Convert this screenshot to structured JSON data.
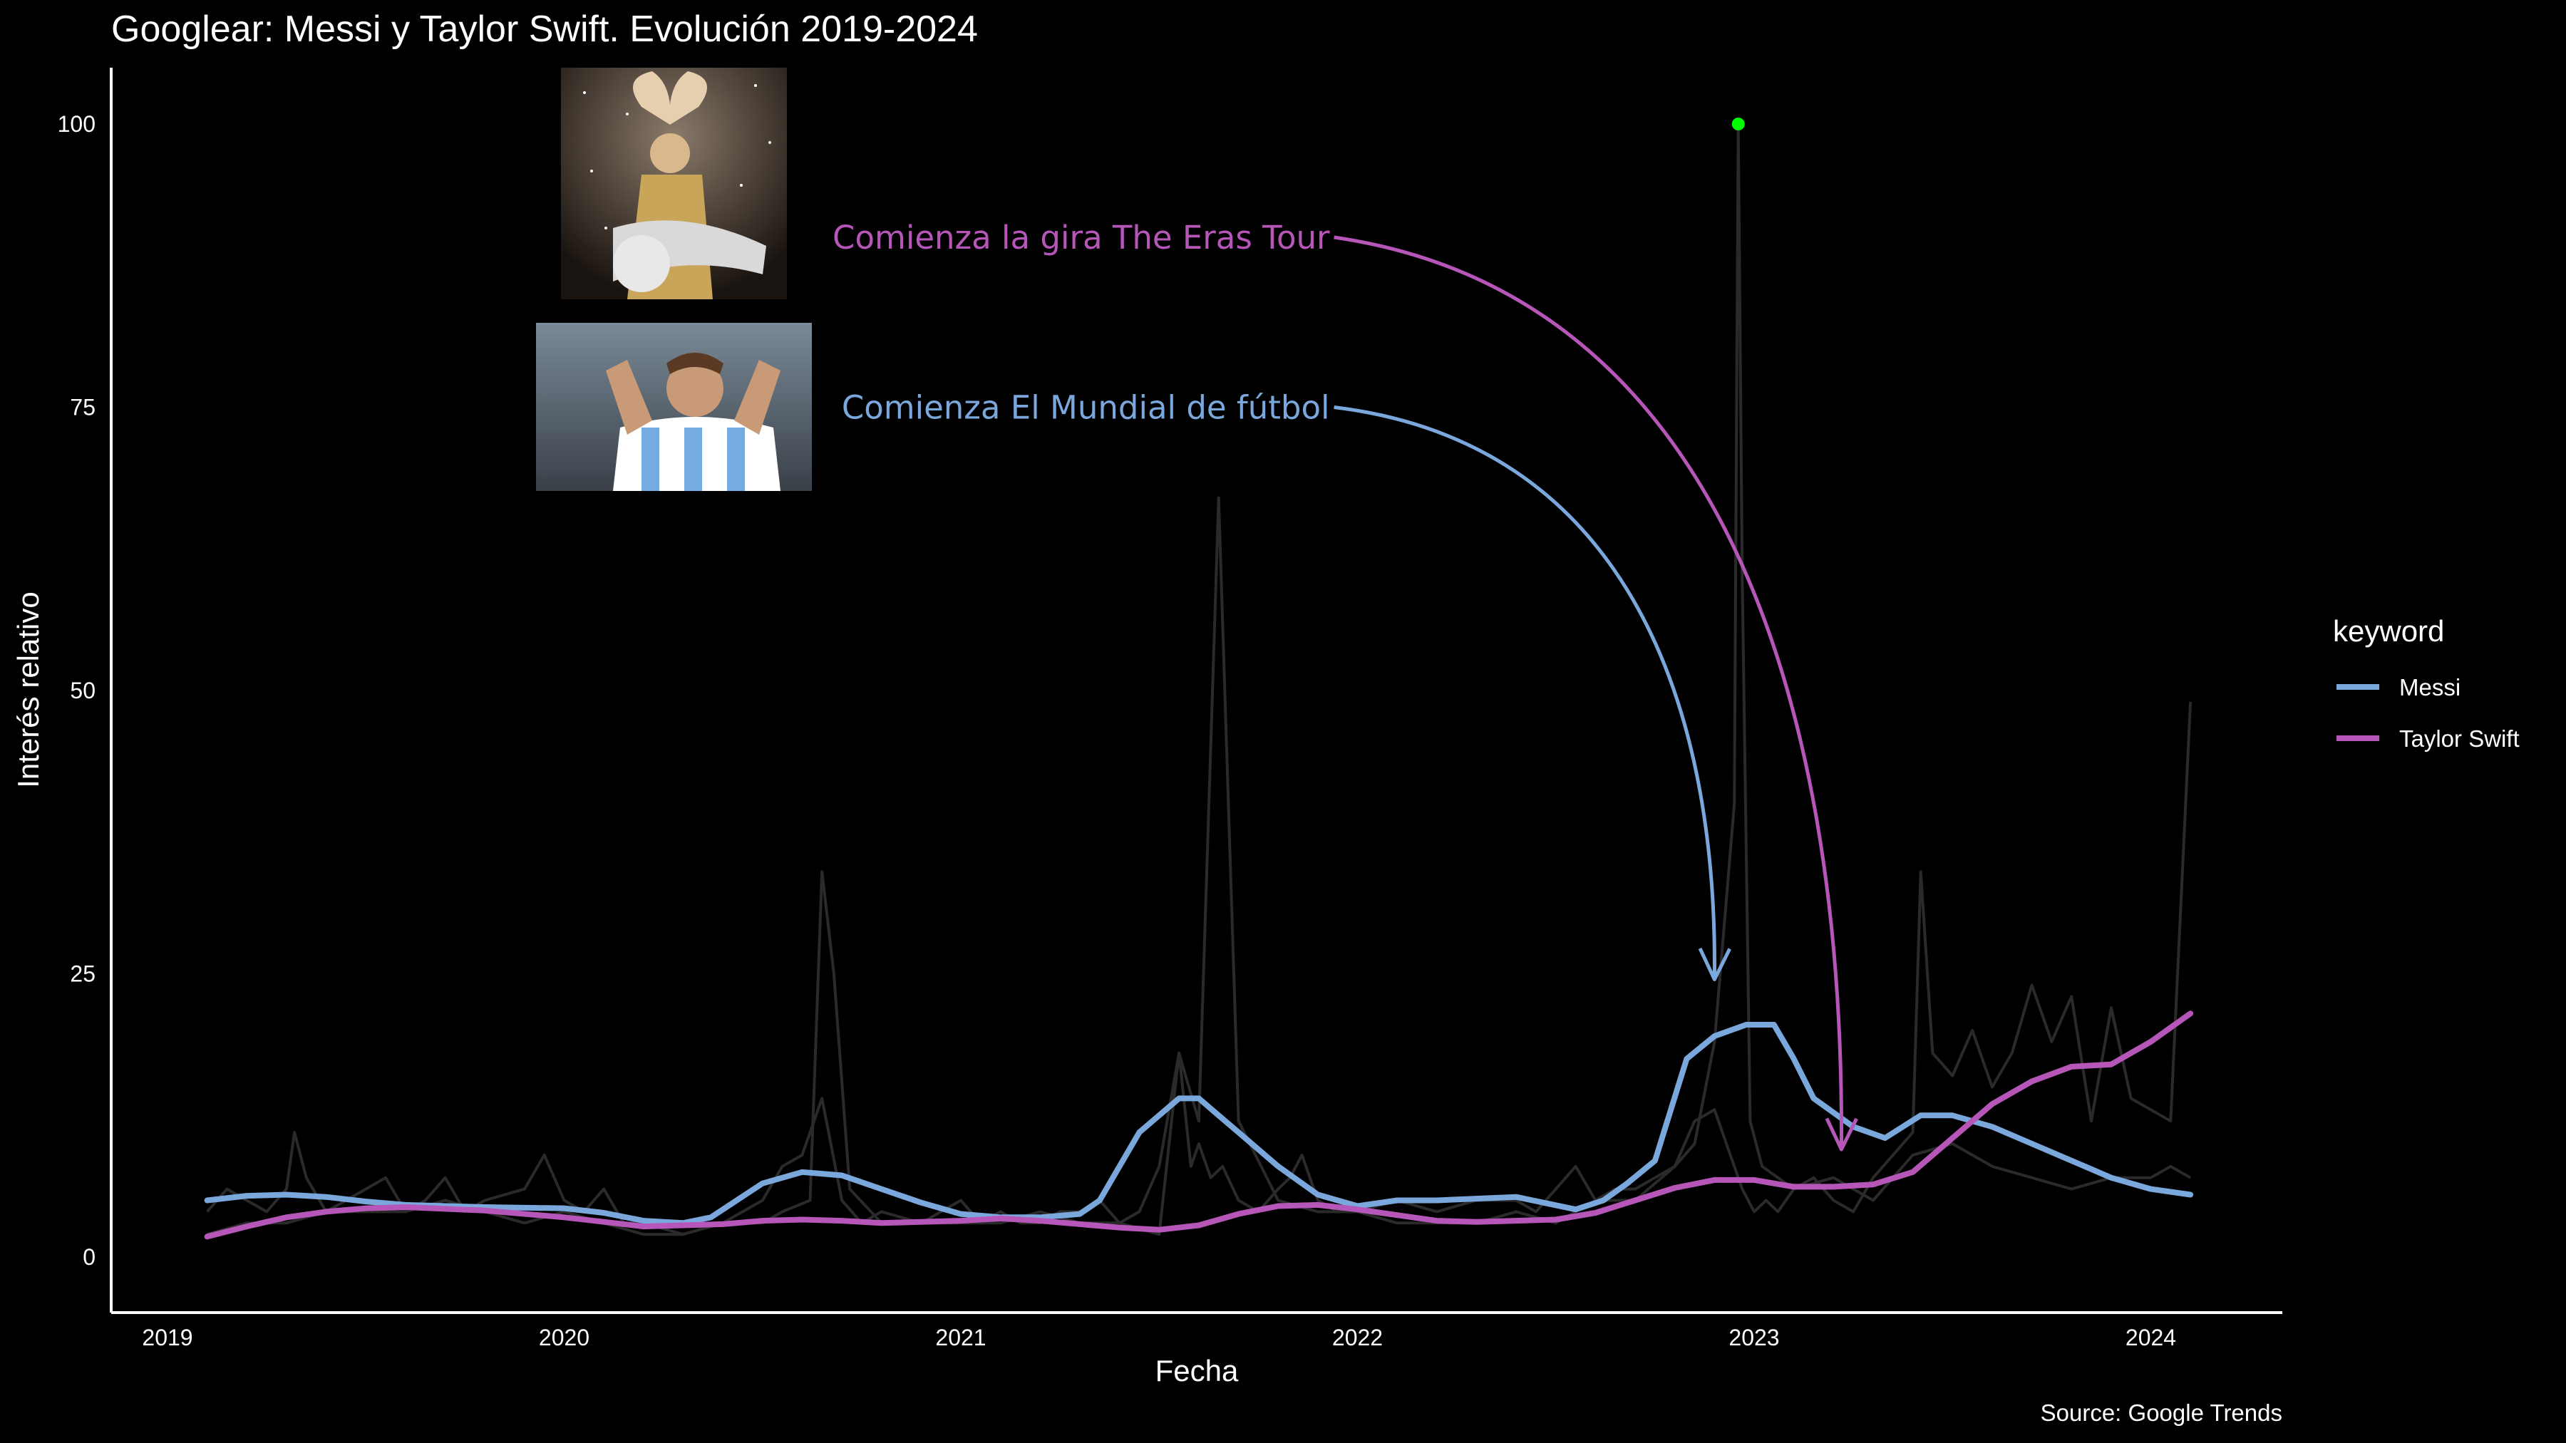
{
  "chart_data": {
    "type": "line",
    "title": "Googlear: Messi y Taylor Swift. Evolución 2019-2024",
    "xlabel": "Fecha",
    "ylabel": "Interés relativo",
    "caption": "Source: Google Trends",
    "xlim": [
      2018.94,
      2024.34
    ],
    "ylim": [
      -5,
      105
    ],
    "x_ticks": [
      2019,
      2020,
      2021,
      2022,
      2023,
      2024
    ],
    "x_tick_labels": [
      "2019",
      "2020",
      "2021",
      "2022",
      "2023",
      "2024"
    ],
    "y_ticks": [
      0,
      25,
      50,
      75,
      100
    ],
    "y_tick_labels": [
      "0",
      "25",
      "50",
      "75",
      "100"
    ],
    "legend": {
      "title": "keyword",
      "position": "right",
      "entries": [
        {
          "label": "Messi",
          "color": "#7aa8dc"
        },
        {
          "label": "Taylor Swift",
          "color": "#b656b8"
        }
      ]
    },
    "series": [
      {
        "name": "Messi",
        "kind": "smoothed",
        "color": "#7aa8dc",
        "x": [
          2019.1,
          2019.2,
          2019.3,
          2019.4,
          2019.5,
          2019.6,
          2019.8,
          2020.0,
          2020.1,
          2020.2,
          2020.3,
          2020.37,
          2020.5,
          2020.6,
          2020.7,
          2020.8,
          2020.9,
          2021.0,
          2021.1,
          2021.2,
          2021.3,
          2021.35,
          2021.45,
          2021.55,
          2021.6,
          2021.65,
          2021.7,
          2021.8,
          2021.9,
          2022.0,
          2022.1,
          2022.2,
          2022.4,
          2022.55,
          2022.62,
          2022.68,
          2022.75,
          2022.83,
          2022.9,
          2022.98,
          2023.05,
          2023.1,
          2023.15,
          2023.25,
          2023.33,
          2023.42,
          2023.5,
          2023.6,
          2023.7,
          2023.8,
          2023.9,
          2024.0,
          2024.1
        ],
        "values": [
          5.0,
          5.4,
          5.5,
          5.3,
          4.9,
          4.6,
          4.4,
          4.3,
          3.9,
          3.2,
          3.0,
          3.5,
          6.5,
          7.5,
          7.2,
          6.0,
          4.8,
          3.8,
          3.5,
          3.5,
          3.8,
          5.0,
          11.0,
          14.0,
          14.0,
          12.5,
          11.0,
          8.0,
          5.5,
          4.5,
          5.0,
          5.0,
          5.3,
          4.2,
          5.0,
          6.5,
          8.5,
          17.5,
          19.5,
          20.5,
          20.5,
          17.5,
          14.0,
          11.5,
          10.5,
          12.5,
          12.5,
          11.5,
          10.0,
          8.5,
          7.0,
          6.0,
          5.5
        ]
      },
      {
        "name": "Taylor Swift",
        "kind": "smoothed",
        "color": "#b656b8",
        "x": [
          2019.1,
          2019.2,
          2019.3,
          2019.4,
          2019.5,
          2019.6,
          2019.8,
          2020.0,
          2020.2,
          2020.4,
          2020.5,
          2020.6,
          2020.7,
          2020.8,
          2021.0,
          2021.1,
          2021.2,
          2021.3,
          2021.4,
          2021.5,
          2021.6,
          2021.7,
          2021.8,
          2021.9,
          2022.0,
          2022.1,
          2022.2,
          2022.3,
          2022.4,
          2022.5,
          2022.6,
          2022.7,
          2022.8,
          2022.9,
          2023.0,
          2023.1,
          2023.2,
          2023.3,
          2023.4,
          2023.5,
          2023.6,
          2023.7,
          2023.8,
          2023.9,
          2024.0,
          2024.1
        ],
        "values": [
          1.8,
          2.7,
          3.5,
          4.0,
          4.3,
          4.4,
          4.1,
          3.5,
          2.7,
          2.9,
          3.2,
          3.3,
          3.2,
          3.0,
          3.2,
          3.4,
          3.2,
          2.9,
          2.6,
          2.4,
          2.8,
          3.8,
          4.5,
          4.6,
          4.2,
          3.7,
          3.2,
          3.1,
          3.2,
          3.3,
          3.9,
          5.0,
          6.1,
          6.8,
          6.8,
          6.2,
          6.2,
          6.4,
          7.5,
          10.5,
          13.5,
          15.5,
          16.8,
          17.0,
          19.0,
          21.5
        ]
      }
    ],
    "raw_series": [
      {
        "color": "#2a2a2a",
        "x": [
          2019.1,
          2019.15,
          2019.2,
          2019.25,
          2019.3,
          2019.32,
          2019.35,
          2019.4,
          2019.45,
          2019.5,
          2019.55,
          2019.6,
          2019.65,
          2019.7,
          2019.75,
          2019.8,
          2019.9,
          2019.95,
          2020.0,
          2020.05,
          2020.1,
          2020.15,
          2020.2,
          2020.3,
          2020.4,
          2020.45,
          2020.5,
          2020.55,
          2020.6,
          2020.65,
          2020.7,
          2020.75,
          2020.8,
          2020.9,
          2021.0,
          2021.05,
          2021.1,
          2021.15,
          2021.2,
          2021.25,
          2021.3,
          2021.35,
          2021.4,
          2021.45,
          2021.5,
          2021.55,
          2021.58,
          2021.6,
          2021.63,
          2021.66,
          2021.7,
          2021.75,
          2021.8,
          2021.83,
          2021.86,
          2021.9,
          2021.95,
          2022.0,
          2022.1,
          2022.2,
          2022.3,
          2022.4,
          2022.45,
          2022.5,
          2022.55,
          2022.6,
          2022.65,
          2022.7,
          2022.75,
          2022.8,
          2022.85,
          2022.9,
          2022.94,
          2022.97,
          2023.0,
          2023.03,
          2023.06,
          2023.1,
          2023.15,
          2023.2,
          2023.25,
          2023.3,
          2023.35,
          2023.4,
          2023.42,
          2023.45,
          2023.5,
          2023.55,
          2023.6,
          2023.65,
          2023.7,
          2023.75,
          2023.8,
          2023.85,
          2023.9,
          2023.95,
          2024.0,
          2024.05,
          2024.1
        ],
        "values": [
          4,
          6,
          5,
          4,
          6,
          11,
          7,
          4,
          5,
          6,
          7,
          4,
          5,
          7,
          4,
          5,
          6,
          9,
          5,
          4,
          6,
          3,
          3,
          2,
          3,
          4,
          5,
          8,
          9,
          14,
          5,
          3,
          4,
          3,
          5,
          3,
          4,
          3,
          3,
          4,
          4,
          5,
          3,
          4,
          8,
          18,
          8,
          10,
          7,
          8,
          5,
          4,
          6,
          7,
          9,
          5,
          4,
          4,
          5,
          4,
          5,
          5,
          4,
          6,
          8,
          5,
          6,
          6,
          7,
          8,
          12,
          13,
          9,
          6,
          4,
          5,
          4,
          6,
          7,
          5,
          4,
          7,
          9,
          11,
          34,
          18,
          16,
          20,
          15,
          18,
          24,
          19,
          23,
          12,
          22,
          14,
          13,
          12,
          49
        ]
      },
      {
        "color": "#2a2a2a",
        "x": [
          2019.1,
          2019.2,
          2019.3,
          2019.4,
          2019.5,
          2019.6,
          2019.7,
          2019.8,
          2019.9,
          2020.0,
          2020.1,
          2020.2,
          2020.3,
          2020.4,
          2020.5,
          2020.55,
          2020.62,
          2020.65,
          2020.68,
          2020.72,
          2020.8,
          2020.9,
          2021.0,
          2021.1,
          2021.2,
          2021.3,
          2021.4,
          2021.5,
          2021.55,
          2021.6,
          2021.65,
          2021.7,
          2021.8,
          2021.9,
          2022.0,
          2022.1,
          2022.2,
          2022.3,
          2022.4,
          2022.5,
          2022.6,
          2022.7,
          2022.8,
          2022.85,
          2022.9,
          2022.95,
          2022.96,
          2022.97,
          2022.99,
          2023.02,
          2023.06,
          2023.1,
          2023.2,
          2023.3,
          2023.4,
          2023.5,
          2023.6,
          2023.7,
          2023.8,
          2023.9,
          2024.0,
          2024.05,
          2024.1
        ],
        "values": [
          2,
          3,
          3,
          4,
          4,
          4,
          5,
          4,
          3,
          4,
          3,
          2,
          2,
          3,
          3,
          4,
          5,
          34,
          25,
          6,
          3,
          3,
          3,
          3,
          4,
          3,
          3,
          2,
          18,
          12,
          67,
          12,
          5,
          4,
          4,
          3,
          3,
          3,
          4,
          3,
          5,
          5,
          8,
          10,
          19,
          40,
          100,
          60,
          12,
          8,
          7,
          6,
          7,
          5,
          9,
          10,
          8,
          7,
          6,
          7,
          7,
          8,
          7
        ]
      }
    ],
    "peak_point": {
      "x": 2022.96,
      "y": 100,
      "color": "#00ff00"
    },
    "annotations": [
      {
        "text": "Comienza la gira The Eras Tour",
        "color": "#b656b8",
        "x": 2021.93,
        "y": 90,
        "arrow_to": [
          2023.22,
          9.5
        ]
      },
      {
        "text": "Comienza El Mundial de fútbol",
        "color": "#7aa8dc",
        "x": 2021.93,
        "y": 75,
        "arrow_to": [
          2022.9,
          24.5
        ]
      }
    ],
    "images": [
      {
        "name": "taylor-swift-photo"
      },
      {
        "name": "messi-photo"
      }
    ]
  }
}
